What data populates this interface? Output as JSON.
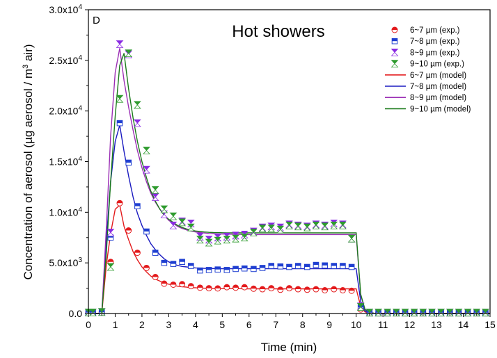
{
  "chart_data": {
    "type": "scatter",
    "panel_label": "D",
    "title": "Hot showers",
    "xlabel": "Time (min)",
    "ylabel_parts": [
      "Concentration of aerosol (µg aerosol / m",
      "3",
      " air)"
    ],
    "xlim": [
      0,
      15
    ],
    "ylim": [
      0,
      30000
    ],
    "x_ticks": [
      "0",
      "1",
      "2",
      "3",
      "4",
      "5",
      "6",
      "7",
      "8",
      "9",
      "10",
      "11",
      "12",
      "13",
      "14",
      "15"
    ],
    "y_ticks": [
      {
        "mant": "0.0",
        "exp": ""
      },
      {
        "mant": "5.0x10",
        "exp": "3"
      },
      {
        "mant": "1.0x10",
        "exp": "4"
      },
      {
        "mant": "1.5x10",
        "exp": "4"
      },
      {
        "mant": "2.0x10",
        "exp": "4"
      },
      {
        "mant": "2.5x10",
        "exp": "4"
      },
      {
        "mant": "3.0x10",
        "exp": "4"
      }
    ],
    "legend_position": "top-right",
    "x": [
      0,
      0.17,
      0.33,
      0.5,
      0.67,
      0.83,
      1.0,
      1.17,
      1.33,
      1.5,
      1.67,
      1.83,
      2.0,
      2.17,
      2.33,
      2.5,
      2.67,
      2.83,
      3.0,
      3.17,
      3.33,
      3.5,
      3.67,
      3.83,
      4.0,
      4.17,
      4.33,
      4.5,
      4.67,
      4.83,
      5.0,
      5.17,
      5.33,
      5.5,
      5.67,
      5.83,
      6.0,
      6.17,
      6.33,
      6.5,
      6.67,
      6.83,
      7.0,
      7.17,
      7.33,
      7.5,
      7.67,
      7.83,
      8.0,
      8.17,
      8.33,
      8.5,
      8.67,
      8.83,
      9.0,
      9.17,
      9.33,
      9.5,
      9.67,
      9.83,
      10.0,
      10.17,
      10.33,
      10.5,
      10.67,
      10.83,
      11.0,
      11.17,
      11.33,
      11.5,
      11.67,
      11.83,
      12.0,
      12.17,
      12.33,
      12.5,
      12.67,
      12.83,
      13.0,
      13.17,
      13.33,
      13.5,
      13.67,
      13.83,
      14.0,
      14.17,
      14.33,
      14.5,
      14.67,
      14.83,
      15.0
    ],
    "series": [
      {
        "name": "6~7 µm (exp.)",
        "kind": "exp",
        "marker": "circle-half",
        "color": "#e31a1c",
        "x": [
          0,
          0.17,
          0.5,
          0.83,
          1.17,
          1.5,
          1.83,
          2.17,
          2.5,
          2.83,
          3.17,
          3.5,
          3.83,
          4.17,
          4.5,
          4.83,
          5.17,
          5.5,
          5.83,
          6.17,
          6.5,
          6.83,
          7.17,
          7.5,
          7.83,
          8.17,
          8.5,
          8.83,
          9.17,
          9.5,
          9.83,
          10.17,
          10.5,
          10.83,
          11.17,
          11.5,
          11.83,
          12.17,
          12.5,
          12.83,
          13.17,
          13.5,
          13.83,
          14.17,
          14.5,
          14.83
        ],
        "values": [
          80,
          80,
          100,
          5100,
          10900,
          8200,
          6000,
          4500,
          3600,
          2950,
          2850,
          2900,
          2700,
          2550,
          2500,
          2480,
          2600,
          2550,
          2600,
          2450,
          2400,
          2500,
          2350,
          2500,
          2400,
          2350,
          2400,
          2300,
          2400,
          2300,
          2250,
          400,
          60,
          60,
          60,
          60,
          60,
          60,
          60,
          60,
          60,
          60,
          60,
          60,
          60,
          60
        ]
      },
      {
        "name": "7~8 µm (exp.)",
        "kind": "exp",
        "marker": "square-half",
        "color": "#1f3fd1",
        "x": [
          0,
          0.17,
          0.5,
          0.83,
          1.17,
          1.5,
          1.83,
          2.17,
          2.5,
          2.83,
          3.17,
          3.5,
          3.83,
          4.17,
          4.5,
          4.83,
          5.17,
          5.5,
          5.83,
          6.17,
          6.5,
          6.83,
          7.17,
          7.5,
          7.83,
          8.17,
          8.5,
          8.83,
          9.17,
          9.5,
          9.83,
          10.17,
          10.5,
          10.83,
          11.17,
          11.5,
          11.83,
          12.17,
          12.5,
          12.83,
          13.17,
          13.5,
          13.83,
          14.17,
          14.5,
          14.83
        ],
        "values": [
          90,
          90,
          120,
          7500,
          18800,
          14900,
          10600,
          8100,
          6000,
          5000,
          4900,
          5100,
          4700,
          4250,
          4300,
          4350,
          4300,
          4400,
          4450,
          4400,
          4500,
          4700,
          4650,
          4600,
          4700,
          4600,
          4800,
          4750,
          4700,
          4700,
          4600,
          600,
          80,
          80,
          80,
          80,
          80,
          80,
          80,
          80,
          80,
          80,
          80,
          80,
          80,
          80
        ]
      },
      {
        "name": "8~9 µm (exp.)",
        "kind": "exp",
        "marker": "bowtie-purple",
        "color": "#8a2be2",
        "x": [
          0,
          0.17,
          0.5,
          0.83,
          1.17,
          1.5,
          1.83,
          2.17,
          2.5,
          2.83,
          3.17,
          3.5,
          3.83,
          4.17,
          4.5,
          4.83,
          5.17,
          5.5,
          5.83,
          6.17,
          6.5,
          6.83,
          7.17,
          7.5,
          7.83,
          8.17,
          8.5,
          8.83,
          9.17,
          9.5,
          9.83,
          10.17,
          10.5,
          10.83,
          11.17,
          11.5,
          11.83,
          12.17,
          12.5,
          12.83,
          13.17,
          13.5,
          13.83,
          14.17,
          14.5,
          14.83
        ],
        "values": [
          100,
          100,
          150,
          8000,
          26600,
          25600,
          18800,
          14200,
          11500,
          9800,
          8700,
          9100,
          8900,
          7600,
          7300,
          7500,
          7600,
          7700,
          7800,
          8100,
          8500,
          8600,
          8500,
          8800,
          8700,
          8600,
          8800,
          8700,
          8900,
          8800,
          7400,
          700,
          90,
          90,
          90,
          90,
          90,
          90,
          90,
          90,
          90,
          90,
          90,
          90,
          90,
          90
        ]
      },
      {
        "name": "9~10 µm (exp.)",
        "kind": "exp",
        "marker": "bowtie-green",
        "color": "#2e9b2e",
        "x": [
          0,
          0.17,
          0.5,
          0.83,
          1.17,
          1.5,
          1.83,
          2.17,
          2.5,
          2.83,
          3.17,
          3.5,
          3.83,
          4.17,
          4.5,
          4.83,
          5.17,
          5.5,
          5.83,
          6.17,
          6.5,
          6.83,
          7.17,
          7.5,
          7.83,
          8.17,
          8.5,
          8.83,
          9.17,
          9.5,
          9.83,
          10.17,
          10.5,
          10.83,
          11.17,
          11.5,
          11.83,
          12.17,
          12.5,
          12.83,
          13.17,
          13.5,
          13.83,
          14.17,
          14.5,
          14.83
        ],
        "values": [
          100,
          100,
          150,
          4600,
          21200,
          25700,
          20600,
          16100,
          12200,
          10300,
          9600,
          9000,
          8500,
          7300,
          7000,
          7200,
          7300,
          7400,
          7500,
          8000,
          8400,
          8400,
          8300,
          8700,
          8600,
          8500,
          8700,
          8600,
          8700,
          8700,
          7400,
          650,
          90,
          90,
          90,
          90,
          90,
          90,
          90,
          90,
          90,
          90,
          90,
          90,
          90,
          90
        ]
      },
      {
        "name": "6~7 µm (model)",
        "kind": "model",
        "color": "#e31a1c",
        "values": [
          0,
          0,
          0,
          0,
          4800,
          7900,
          10300,
          10700,
          8600,
          7300,
          6100,
          5300,
          4600,
          4100,
          3700,
          3400,
          3200,
          3000,
          2900,
          2800,
          2700,
          2650,
          2600,
          2550,
          2550,
          2500,
          2500,
          2480,
          2480,
          2460,
          2460,
          2450,
          2450,
          2450,
          2450,
          2440,
          2440,
          2440,
          2440,
          2440,
          2440,
          2440,
          2440,
          2440,
          2440,
          2440,
          2440,
          2440,
          2440,
          2440,
          2440,
          2440,
          2440,
          2440,
          2440,
          2440,
          2440,
          2440,
          2440,
          2440,
          2440,
          700,
          150,
          40,
          20,
          10,
          5,
          0,
          0,
          0,
          0,
          0,
          0,
          0,
          0,
          0,
          0,
          0,
          0,
          0,
          0,
          0,
          0,
          0,
          0,
          0,
          0,
          0,
          0,
          0,
          0
        ]
      },
      {
        "name": "7~8 µm (model)",
        "kind": "model",
        "color": "#1a1ac0",
        "values": [
          0,
          0,
          0,
          0,
          7200,
          13000,
          17000,
          18600,
          16000,
          13600,
          11500,
          9900,
          8700,
          7700,
          6900,
          6300,
          5800,
          5400,
          5100,
          4900,
          4750,
          4650,
          4600,
          4550,
          4500,
          4480,
          4460,
          4450,
          4440,
          4430,
          4420,
          4420,
          4420,
          4420,
          4420,
          4420,
          4420,
          4420,
          4420,
          4420,
          4420,
          4420,
          4420,
          4420,
          4420,
          4420,
          4420,
          4420,
          4420,
          4420,
          4420,
          4420,
          4420,
          4420,
          4420,
          4420,
          4420,
          4420,
          4420,
          4420,
          4420,
          1200,
          250,
          60,
          20,
          10,
          5,
          0,
          0,
          0,
          0,
          0,
          0,
          0,
          0,
          0,
          0,
          0,
          0,
          0,
          0,
          0,
          0,
          0,
          0,
          0,
          0,
          0,
          0,
          0,
          0
        ]
      },
      {
        "name": "8~9 µm (model)",
        "kind": "model",
        "color": "#9b2fb5",
        "values": [
          0,
          0,
          0,
          0,
          8500,
          17500,
          23800,
          26200,
          23000,
          20400,
          18100,
          16100,
          14400,
          13000,
          11900,
          11000,
          10300,
          9700,
          9200,
          8900,
          8600,
          8400,
          8250,
          8150,
          8050,
          8000,
          7950,
          7900,
          7880,
          7860,
          7850,
          7840,
          7830,
          7820,
          7810,
          7800,
          7800,
          7800,
          7800,
          7800,
          7800,
          7800,
          7800,
          7800,
          7800,
          7800,
          7800,
          7800,
          7800,
          7800,
          7800,
          7800,
          7800,
          7800,
          7800,
          7800,
          7800,
          7800,
          7800,
          7800,
          7800,
          1800,
          400,
          90,
          30,
          10,
          5,
          0,
          0,
          0,
          0,
          0,
          0,
          0,
          0,
          0,
          0,
          0,
          0,
          0,
          0,
          0,
          0,
          0,
          0,
          0,
          0,
          0,
          0,
          0,
          0
        ]
      },
      {
        "name": "9~10 µm (model)",
        "kind": "model",
        "color": "#1a7a1a",
        "values": [
          0,
          0,
          0,
          0,
          6000,
          13000,
          19500,
          24500,
          25700,
          22200,
          19300,
          17000,
          15000,
          13400,
          12100,
          11100,
          10300,
          9700,
          9300,
          9000,
          8700,
          8500,
          8350,
          8250,
          8150,
          8100,
          8050,
          8020,
          8000,
          7990,
          7980,
          7970,
          7960,
          7960,
          7960,
          7960,
          7960,
          7960,
          7960,
          7960,
          7960,
          7960,
          7960,
          7960,
          7960,
          7960,
          7960,
          7960,
          7960,
          7960,
          7960,
          7960,
          7960,
          7960,
          7960,
          7960,
          7960,
          7960,
          7960,
          7960,
          7960,
          1900,
          400,
          90,
          30,
          10,
          5,
          0,
          0,
          0,
          0,
          0,
          0,
          0,
          0,
          0,
          0,
          0,
          0,
          0,
          0,
          0,
          0,
          0,
          0,
          0,
          0,
          0,
          0,
          0,
          0
        ]
      }
    ]
  }
}
